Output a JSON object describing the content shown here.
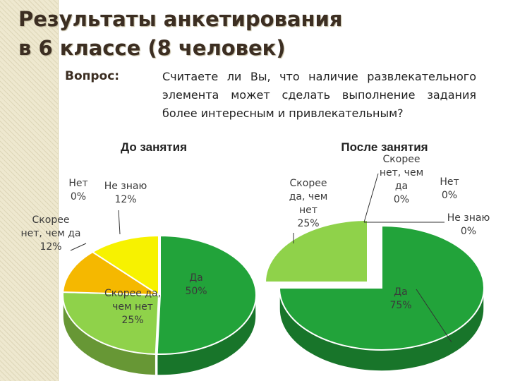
{
  "title": {
    "line1": "Результаты анкетирования",
    "line2": "в 6 классе (8 человек)"
  },
  "question": {
    "label": "Вопрос:",
    "text": "Считаете ли Вы, что наличие развлекательного элемента может сделать выполнение задания более интересным и привлекательным?"
  },
  "chart_data": [
    {
      "type": "pie",
      "title": "До занятия",
      "categories": [
        "Да",
        "Скорее да, чем нет",
        "Скорее нет, чем да",
        "Нет",
        "Не знаю"
      ],
      "values": [
        50,
        25,
        12,
        0,
        12
      ],
      "labels": [
        [
          "Да",
          "50%"
        ],
        [
          "Скорее да,",
          "чем нет",
          "25%"
        ],
        [
          "Скорее",
          "нет, чем да",
          "12%"
        ],
        [
          "Нет",
          "0%"
        ],
        [
          "Не знаю",
          "12%"
        ]
      ],
      "colors": [
        "#22a33a",
        "#8fd24a",
        "#f5b800",
        "#c0392b",
        "#f7f200"
      ]
    },
    {
      "type": "pie",
      "title": "После занятия",
      "categories": [
        "Да",
        "Скорее да, чем нет",
        "Скорее нет, чем да",
        "Нет",
        "Не знаю"
      ],
      "values": [
        75,
        25,
        0,
        0,
        0
      ],
      "labels": [
        [
          "Да",
          "75%"
        ],
        [
          "Скорее",
          "да, чем",
          "нет",
          "25%"
        ],
        [
          "Скорее",
          "нет, чем",
          "да",
          "0%"
        ],
        [
          "Нет",
          "0%"
        ],
        [
          "Не знаю",
          "0%"
        ]
      ],
      "colors": [
        "#22a33a",
        "#8fd24a",
        "#f5b800",
        "#c0392b",
        "#f7f200"
      ]
    }
  ]
}
